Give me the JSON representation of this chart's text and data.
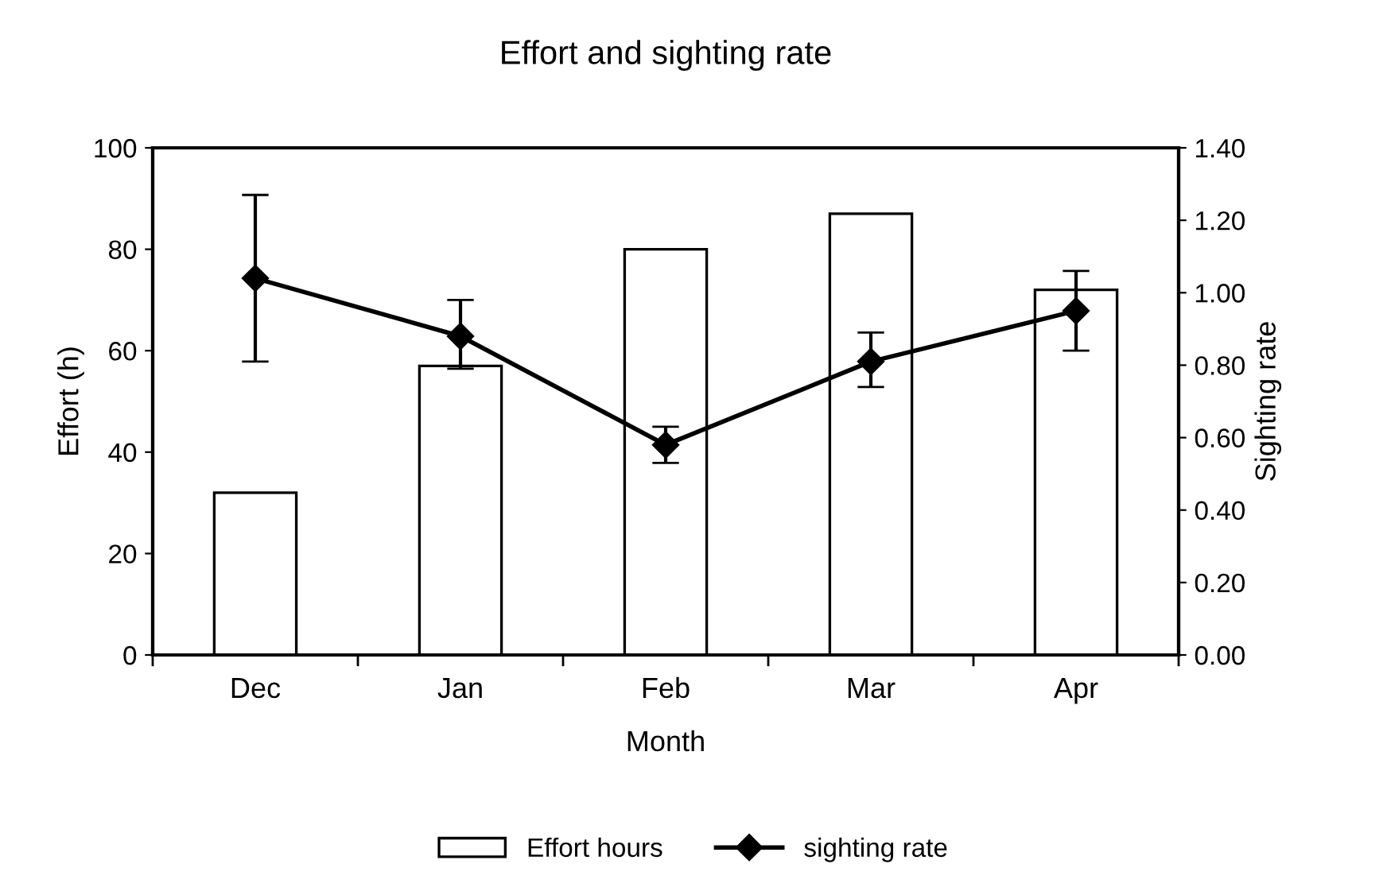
{
  "chart_data": {
    "type": "bar",
    "title": "Effort and sighting rate",
    "xlabel": "Month",
    "ylabel": "Effort (h)",
    "y2label": "Sighting rate",
    "categories": [
      "Dec",
      "Jan",
      "Feb",
      "Mar",
      "Apr"
    ],
    "series": [
      {
        "name": "Effort hours",
        "color": "#ffffff",
        "values": [
          32,
          57,
          80,
          87,
          72
        ]
      },
      {
        "name": "sighting rate",
        "type": "line",
        "axis": "y2",
        "color": "#000000",
        "marker": "diamond",
        "values": [
          1.04,
          0.88,
          0.58,
          0.81,
          0.95
        ],
        "errors": [
          [
            0.81,
            1.27
          ],
          [
            0.79,
            0.98
          ],
          [
            0.53,
            0.63
          ],
          [
            0.74,
            0.89
          ],
          [
            0.84,
            1.06
          ]
        ]
      }
    ],
    "ylim": [
      0,
      100
    ],
    "yticks": [
      0,
      20,
      40,
      60,
      80,
      100
    ],
    "y2lim": [
      0,
      1.4
    ],
    "y2ticks": [
      {
        "value": 0,
        "label": "0.00"
      },
      {
        "value": 0.2,
        "label": "0.20"
      },
      {
        "value": 0.4,
        "label": "0.40"
      },
      {
        "value": 0.6,
        "label": "0.60"
      },
      {
        "value": 0.8,
        "label": "0.80"
      },
      {
        "value": 1.0,
        "label": "1.00"
      },
      {
        "value": 1.2,
        "label": "1.20"
      },
      {
        "value": 1.4,
        "label": "1.40"
      }
    ],
    "grid": false,
    "legend": "bottom"
  }
}
